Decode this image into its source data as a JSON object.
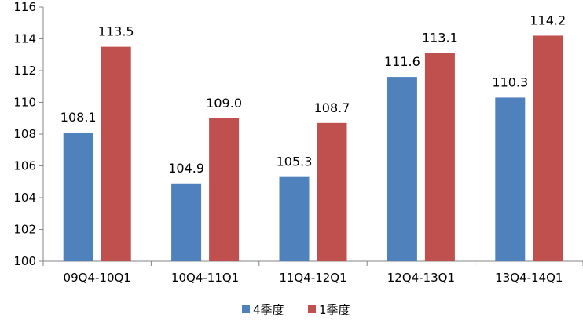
{
  "chart_data": {
    "type": "bar",
    "categories": [
      "09Q4-10Q1",
      "10Q4-11Q1",
      "11Q4-12Q1",
      "12Q4-13Q1",
      "13Q4-14Q1"
    ],
    "series": [
      {
        "name": "4季度",
        "color": "#4F81BD",
        "values": [
          108.1,
          104.9,
          105.3,
          111.6,
          110.3
        ],
        "labels": [
          "108.1",
          "104.9",
          "105.3",
          "111.6",
          "110.3"
        ]
      },
      {
        "name": "1季度",
        "color": "#C0504D",
        "values": [
          113.5,
          109.0,
          108.7,
          113.1,
          114.2
        ],
        "labels": [
          "113.5",
          "109.0",
          "108.7",
          "113.1",
          "114.2"
        ]
      }
    ],
    "ylim": [
      100,
      116
    ],
    "yticks": [
      "100",
      "102",
      "104",
      "106",
      "108",
      "110",
      "112",
      "114",
      "116"
    ],
    "grid": false,
    "legend": "bottom-center",
    "title": "",
    "xlabel": "",
    "ylabel": ""
  }
}
